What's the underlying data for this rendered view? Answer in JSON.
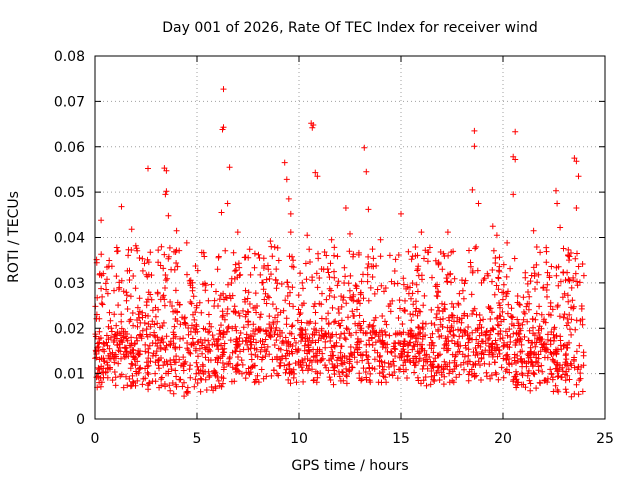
{
  "chart_data": {
    "type": "scatter",
    "title": "Day 001 of 2026, Rate Of TEC Index for receiver wind",
    "xlabel": "GPS time / hours",
    "ylabel": "ROTI / TECUs",
    "xlim": [
      0,
      25
    ],
    "ylim": [
      0,
      0.08
    ],
    "xticks": [
      0,
      5,
      10,
      15,
      20,
      25
    ],
    "xtick_labels": [
      "0",
      "5",
      "10",
      "15",
      "20",
      "25"
    ],
    "yticks": [
      0,
      0.01,
      0.02,
      0.03,
      0.04,
      0.05,
      0.06,
      0.07,
      0.08
    ],
    "ytick_labels": [
      "0",
      "0.01",
      "0.02",
      "0.03",
      "0.04",
      "0.05",
      "0.06",
      "0.07",
      "0.08"
    ],
    "grid": true,
    "marker": "plus",
    "color": "#ff0000",
    "series": [
      {
        "name": "ROTI",
        "points": [
          [
            6.3,
            0.0727
          ],
          [
            6.3,
            0.0643
          ],
          [
            6.25,
            0.0638
          ],
          [
            10.6,
            0.0652
          ],
          [
            10.7,
            0.0648
          ],
          [
            10.65,
            0.0642
          ],
          [
            18.6,
            0.0635
          ],
          [
            20.6,
            0.0633
          ],
          [
            13.2,
            0.0598
          ],
          [
            18.6,
            0.0601
          ],
          [
            20.5,
            0.0578
          ],
          [
            20.6,
            0.0572
          ],
          [
            23.5,
            0.0575
          ],
          [
            23.6,
            0.0568
          ],
          [
            9.3,
            0.0565
          ],
          [
            9.4,
            0.0528
          ],
          [
            3.4,
            0.0553
          ],
          [
            3.5,
            0.0547
          ],
          [
            2.6,
            0.0552
          ],
          [
            6.6,
            0.0555
          ],
          [
            13.3,
            0.0545
          ],
          [
            10.8,
            0.0543
          ],
          [
            10.9,
            0.0535
          ],
          [
            3.5,
            0.0502
          ],
          [
            3.45,
            0.0495
          ],
          [
            22.6,
            0.0503
          ],
          [
            22.65,
            0.0475
          ],
          [
            23.7,
            0.0535
          ],
          [
            18.5,
            0.0505
          ],
          [
            20.5,
            0.0495
          ],
          [
            9.5,
            0.0485
          ],
          [
            6.5,
            0.0475
          ],
          [
            1.3,
            0.0468
          ],
          [
            12.3,
            0.0465
          ],
          [
            15.0,
            0.0452
          ],
          [
            18.8,
            0.0475
          ],
          [
            23.6,
            0.0465
          ],
          [
            13.4,
            0.0462
          ],
          [
            6.2,
            0.0455
          ],
          [
            9.6,
            0.0452
          ],
          [
            3.6,
            0.0448
          ],
          [
            0.3,
            0.0438
          ],
          [
            1.8,
            0.0418
          ],
          [
            4.0,
            0.0415
          ],
          [
            9.6,
            0.0412
          ],
          [
            7.0,
            0.0412
          ],
          [
            10.4,
            0.0405
          ],
          [
            12.5,
            0.0408
          ],
          [
            16.0,
            0.0412
          ],
          [
            17.3,
            0.0412
          ],
          [
            21.5,
            0.0415
          ],
          [
            22.8,
            0.0422
          ],
          [
            19.5,
            0.0425
          ],
          [
            19.7,
            0.0405
          ],
          [
            14.0,
            0.0395
          ],
          [
            2.0,
            0.0382
          ],
          [
            8.6,
            0.0392
          ],
          [
            11.6,
            0.0395
          ],
          [
            4.5,
            0.0388
          ],
          [
            20.2,
            0.0388
          ]
        ]
      }
    ],
    "noise_band": {
      "x_range": [
        0,
        24
      ],
      "baseline": [
        [
          0,
          0.012
        ],
        [
          1,
          0.013
        ],
        [
          2,
          0.012
        ],
        [
          3,
          0.012
        ],
        [
          4,
          0.011
        ],
        [
          5,
          0.011
        ],
        [
          6,
          0.012
        ],
        [
          7,
          0.014
        ],
        [
          8,
          0.014
        ],
        [
          9,
          0.013
        ],
        [
          10,
          0.014
        ],
        [
          11,
          0.013
        ],
        [
          12,
          0.013
        ],
        [
          13,
          0.014
        ],
        [
          14,
          0.013
        ],
        [
          15,
          0.013
        ],
        [
          16,
          0.013
        ],
        [
          17,
          0.013
        ],
        [
          18,
          0.014
        ],
        [
          19,
          0.013
        ],
        [
          20,
          0.014
        ],
        [
          21,
          0.012
        ],
        [
          22,
          0.012
        ],
        [
          23,
          0.011
        ],
        [
          24,
          0.01
        ]
      ],
      "typical_min": 0.003,
      "typical_max": 0.038,
      "point_count": 2200
    }
  }
}
